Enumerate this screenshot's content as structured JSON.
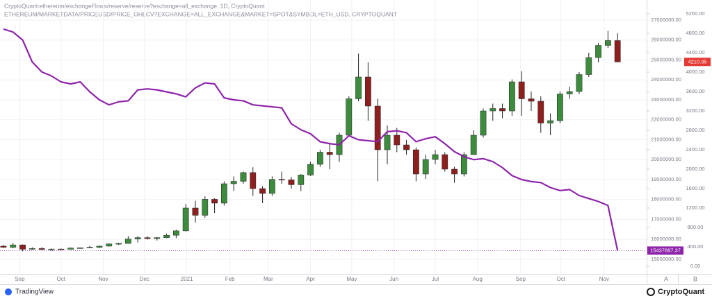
{
  "chart_data": {
    "type": "candlestick",
    "name": "ETHEREUM/MARKETDATA/PRICEUSD/PRICE_OHLCV?EXCHANGE=ALL_EXCHANGE&MARKET=SPOT&SYMBOL=ETH_USD, CRYPTOQUANT",
    "up_color": "#3d8b3d",
    "down_color": "#8e1f1f",
    "wick_color": "#222",
    "open": [
      415,
      390,
      440,
      350,
      365,
      345,
      355,
      350,
      375,
      380,
      390,
      415,
      460,
      470,
      560,
      590,
      570,
      590,
      640,
      730,
      1200,
      1050,
      1380,
      1300,
      1700,
      1750,
      1930,
      1600,
      1500,
      1790,
      1780,
      1680,
      1880,
      2100,
      2350,
      2300,
      2700,
      3450,
      3900,
      3300,
      2400,
      2700,
      2500,
      2400,
      1900,
      2200,
      2300,
      2000,
      1900,
      2300,
      2700,
      3200,
      3250,
      3200,
      3800,
      3450,
      3400,
      2950,
      3000,
      3550,
      3600,
      3950,
      4300,
      4550,
      4650
    ],
    "high": [
      440,
      480,
      450,
      390,
      395,
      365,
      365,
      385,
      385,
      420,
      420,
      470,
      480,
      620,
      620,
      620,
      600,
      670,
      750,
      1280,
      1350,
      1440,
      1400,
      1750,
      1850,
      1950,
      2040,
      1650,
      1850,
      1950,
      1840,
      1900,
      2150,
      2400,
      2550,
      2750,
      3500,
      4380,
      4200,
      3450,
      2900,
      2850,
      2600,
      2450,
      2300,
      2400,
      2350,
      2050,
      2350,
      2800,
      3250,
      3350,
      3350,
      3850,
      4020,
      3600,
      3500,
      3150,
      3600,
      3700,
      4000,
      4400,
      4600,
      4850,
      4800
    ],
    "low": [
      380,
      370,
      310,
      340,
      330,
      320,
      335,
      345,
      365,
      375,
      370,
      405,
      440,
      465,
      490,
      550,
      530,
      580,
      580,
      720,
      900,
      1000,
      1100,
      1250,
      1550,
      1700,
      1450,
      1300,
      1450,
      1700,
      1600,
      1550,
      1860,
      2050,
      2000,
      2150,
      2700,
      3400,
      3000,
      1750,
      2100,
      2350,
      2300,
      1750,
      1800,
      2100,
      1950,
      1720,
      1850,
      2300,
      2650,
      3000,
      3050,
      3100,
      3100,
      3200,
      2750,
      2700,
      2950,
      3450,
      3550,
      3900,
      4200,
      4500,
      4200
    ],
    "close": [
      390,
      440,
      350,
      365,
      345,
      355,
      350,
      375,
      380,
      390,
      415,
      460,
      470,
      560,
      590,
      570,
      590,
      640,
      730,
      1200,
      1050,
      1380,
      1300,
      1700,
      1750,
      1930,
      1600,
      1500,
      1790,
      1780,
      1680,
      1880,
      2100,
      2350,
      2300,
      2700,
      3450,
      3900,
      3300,
      2400,
      2700,
      2500,
      2400,
      1900,
      2200,
      2300,
      2000,
      1900,
      2300,
      2700,
      3200,
      3250,
      3200,
      3800,
      3450,
      3400,
      2950,
      3000,
      3550,
      3600,
      3950,
      4300,
      4550,
      4650,
      4210.35
    ],
    "axis": "y2",
    "overlay": {
      "type": "line",
      "name": "CryptoQuant:ethereum/exchangeFlows/reserve/reserve?exchange=all_exchange, 1D, CryptoQuant",
      "color": "#8e24aa",
      "values": [
        26550000,
        26400000,
        26000000,
        24900000,
        24400000,
        24200000,
        23900000,
        23800000,
        23900000,
        23400000,
        23000000,
        22750000,
        22900000,
        22950000,
        23500000,
        23550000,
        23500000,
        23400000,
        23300000,
        23150000,
        23600000,
        23850000,
        23800000,
        23100000,
        23000000,
        22950000,
        22750000,
        22700000,
        22650000,
        22600000,
        21800000,
        21500000,
        21300000,
        20900000,
        20800000,
        20750000,
        21200000,
        21000000,
        20950000,
        20900000,
        21400000,
        21450000,
        21350000,
        20900000,
        21050000,
        21150000,
        20800000,
        20400000,
        20150000,
        20000000,
        20050000,
        19900000,
        19600000,
        19200000,
        19000000,
        18900000,
        18850000,
        18600000,
        18450000,
        18500000,
        18200000,
        18050000,
        17900000,
        17700000,
        15437897.37
      ]
    },
    "xlim": [
      -0.36,
      67.03
    ],
    "xticks": [
      {
        "value": 1.7,
        "label": "Sep"
      },
      {
        "value": 6,
        "label": "Oct"
      },
      {
        "value": 10.4,
        "label": "Nov"
      },
      {
        "value": 14.7,
        "label": "Dec"
      },
      {
        "value": 19.1,
        "label": "2021"
      },
      {
        "value": 23.6,
        "label": "Feb"
      },
      {
        "value": 27.6,
        "label": "Mar"
      },
      {
        "value": 32,
        "label": "Apr"
      },
      {
        "value": 36.3,
        "label": "May"
      },
      {
        "value": 40.7,
        "label": "Jun"
      },
      {
        "value": 45,
        "label": "Jul"
      },
      {
        "value": 49.4,
        "label": "Aug"
      },
      {
        "value": 53.9,
        "label": "Sep"
      },
      {
        "value": 58.1,
        "label": "Oct"
      },
      {
        "value": 62.6,
        "label": "Nov"
      }
    ],
    "ylim": [
      14652000,
      27313000
    ],
    "yticks": [
      {
        "value": 15000000,
        "label": "15000000.00"
      },
      {
        "value": 16000000,
        "label": "16000000.00"
      },
      {
        "value": 17000000,
        "label": "17000000.00"
      },
      {
        "value": 18000000,
        "label": "18000000.00"
      },
      {
        "value": 19000000,
        "label": "19000000.00"
      },
      {
        "value": 20000000,
        "label": "20000000.00"
      },
      {
        "value": 21000000,
        "label": "21000000.00"
      },
      {
        "value": 22000000,
        "label": "22000000.00"
      },
      {
        "value": 23000000,
        "label": "23000000.00"
      },
      {
        "value": 24000000,
        "label": "24000000.00"
      },
      {
        "value": 25000000,
        "label": "25000000.00"
      },
      {
        "value": 26000000,
        "label": "26000000.00"
      },
      {
        "value": 27000000,
        "label": "27000000.00"
      }
    ],
    "y2lim": [
      0,
      5200
    ],
    "y2ticks": [
      {
        "value": 0,
        "label": "0.00"
      },
      {
        "value": 400,
        "label": "400.00"
      },
      {
        "value": 800,
        "label": "800.00"
      },
      {
        "value": 1200,
        "label": "1200.00"
      },
      {
        "value": 1600,
        "label": "1600.00"
      },
      {
        "value": 2000,
        "label": "2000.00"
      },
      {
        "value": 2400,
        "label": "2400.00"
      },
      {
        "value": 2800,
        "label": "2800.00"
      },
      {
        "value": 3200,
        "label": "3200.00"
      },
      {
        "value": 3600,
        "label": "3600.00"
      },
      {
        "value": 4000,
        "label": "4000.00"
      },
      {
        "value": 4400,
        "label": "4400.00"
      },
      {
        "value": 4800,
        "label": "4800.00"
      },
      {
        "value": 5200,
        "label": "5200.00"
      }
    ],
    "grid": true
  },
  "footer": {
    "left": "TradingView",
    "right": "CryptoQuant"
  },
  "scale_buttons": [
    "A",
    "B"
  ]
}
